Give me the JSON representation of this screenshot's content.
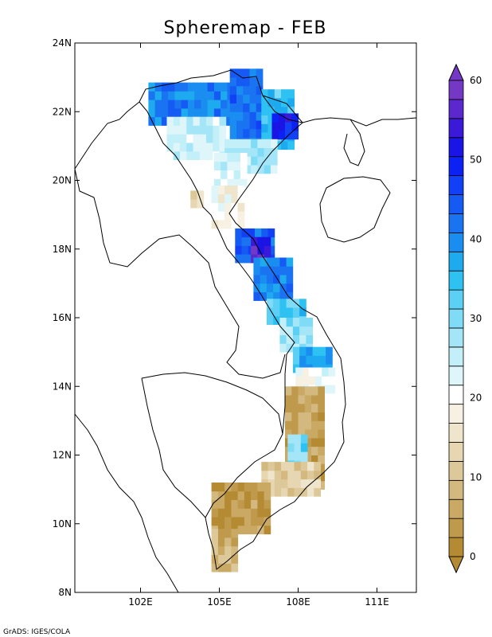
{
  "title": "Spheremap - FEB",
  "credit": "GrADS: IGES/COLA",
  "map": {
    "lon_range": [
      99.5,
      112.5
    ],
    "lat_range": [
      8,
      24
    ],
    "x_ticks": [
      {
        "value": 102,
        "label": "102E"
      },
      {
        "value": 105,
        "label": "105E"
      },
      {
        "value": 108,
        "label": "108E"
      },
      {
        "value": 111,
        "label": "111E"
      }
    ],
    "y_ticks": [
      {
        "value": 8,
        "label": "8N"
      },
      {
        "value": 10,
        "label": "10N"
      },
      {
        "value": 12,
        "label": "12N"
      },
      {
        "value": 14,
        "label": "14N"
      },
      {
        "value": 16,
        "label": "16N"
      },
      {
        "value": 18,
        "label": "18N"
      },
      {
        "value": 20,
        "label": "20N"
      },
      {
        "value": 22,
        "label": "22N"
      },
      {
        "value": 24,
        "label": "24N"
      }
    ]
  },
  "colorbar": {
    "min": 0,
    "max": 60,
    "step": 2.5,
    "labels": [
      "0",
      "10",
      "20",
      "30",
      "40",
      "50",
      "60"
    ],
    "colors": [
      "#b48a33",
      "#bf9a4c",
      "#c9a964",
      "#d3b97f",
      "#ddc899",
      "#e6d6b2",
      "#efe5cc",
      "#f7f1e4",
      "#ffffff",
      "#def6fa",
      "#c2eff8",
      "#a4e6f7",
      "#80dcf6",
      "#5cd0f4",
      "#2ec2f2",
      "#1eaaee",
      "#1a8ef0",
      "#1a74f2",
      "#165af4",
      "#1240f6",
      "#0c22f4",
      "#1a14e4",
      "#3a1ad8",
      "#5a28cc",
      "#7438c4"
    ]
  },
  "chart_data": {
    "type": "heatmap",
    "title": "Spheremap - FEB",
    "month": "FEB",
    "xlabel": "",
    "ylabel": "",
    "x_range": [
      99.5,
      112.5
    ],
    "y_range": [
      8,
      24
    ],
    "value_range": [
      0,
      60
    ],
    "regions": [
      {
        "name": "",
        "lon": [
          102.3,
          105.4
        ],
        "lat": [
          21.6,
          22.8
        ],
        "value": 42
      },
      {
        "name": "",
        "lon": [
          105.4,
          106.6
        ],
        "lat": [
          21.0,
          23.2
        ],
        "value": 44
      },
      {
        "name": "",
        "lon": [
          106.6,
          107.7
        ],
        "lat": [
          20.9,
          22.6
        ],
        "value": 36
      },
      {
        "name": "",
        "lon": [
          107.0,
          108.0
        ],
        "lat": [
          21.2,
          21.8
        ],
        "value": 52
      },
      {
        "name": "",
        "lon": [
          103.0,
          105.2
        ],
        "lat": [
          20.6,
          21.8
        ],
        "value": 26
      },
      {
        "name": "",
        "lon": [
          105.2,
          107.0
        ],
        "lat": [
          20.2,
          21.2
        ],
        "value": 28
      },
      {
        "name": "",
        "lon": [
          104.8,
          106.0
        ],
        "lat": [
          19.8,
          20.6
        ],
        "value": 24
      },
      {
        "name": "",
        "lon": [
          104.7,
          105.9
        ],
        "lat": [
          18.6,
          19.8
        ],
        "value": 20
      },
      {
        "name": "",
        "lon": [
          105.6,
          106.9
        ],
        "lat": [
          17.6,
          18.6
        ],
        "value": 46
      },
      {
        "name": "",
        "lon": [
          106.2,
          106.8
        ],
        "lat": [
          17.6,
          18.2
        ],
        "value": 58
      },
      {
        "name": "",
        "lon": [
          106.3,
          107.6
        ],
        "lat": [
          16.5,
          17.6
        ],
        "value": 42
      },
      {
        "name": "",
        "lon": [
          106.8,
          108.1
        ],
        "lat": [
          15.8,
          16.5
        ],
        "value": 34
      },
      {
        "name": "",
        "lon": [
          107.3,
          108.4
        ],
        "lat": [
          15.0,
          15.8
        ],
        "value": 30
      },
      {
        "name": "",
        "lon": [
          107.8,
          109.2
        ],
        "lat": [
          14.4,
          15.0
        ],
        "value": 38
      },
      {
        "name": "",
        "lon": [
          107.9,
          109.2
        ],
        "lat": [
          13.8,
          14.4
        ],
        "value": 22
      },
      {
        "name": "",
        "lon": [
          107.5,
          109.0
        ],
        "lat": [
          11.0,
          13.8
        ],
        "value": 6
      },
      {
        "name": "",
        "lon": [
          107.6,
          108.2
        ],
        "lat": [
          11.6,
          12.4
        ],
        "value": 32
      },
      {
        "name": "",
        "lon": [
          106.6,
          108.8
        ],
        "lat": [
          10.8,
          11.8
        ],
        "value": 12
      },
      {
        "name": "",
        "lon": [
          104.7,
          106.8
        ],
        "lat": [
          9.7,
          11.0
        ],
        "value": 4
      },
      {
        "name": "",
        "lon": [
          104.7,
          105.6
        ],
        "lat": [
          8.6,
          9.7
        ],
        "value": 8
      },
      {
        "name": "",
        "lon": [
          103.9,
          104.4
        ],
        "lat": [
          19.2,
          19.6
        ],
        "value": 14
      }
    ]
  }
}
